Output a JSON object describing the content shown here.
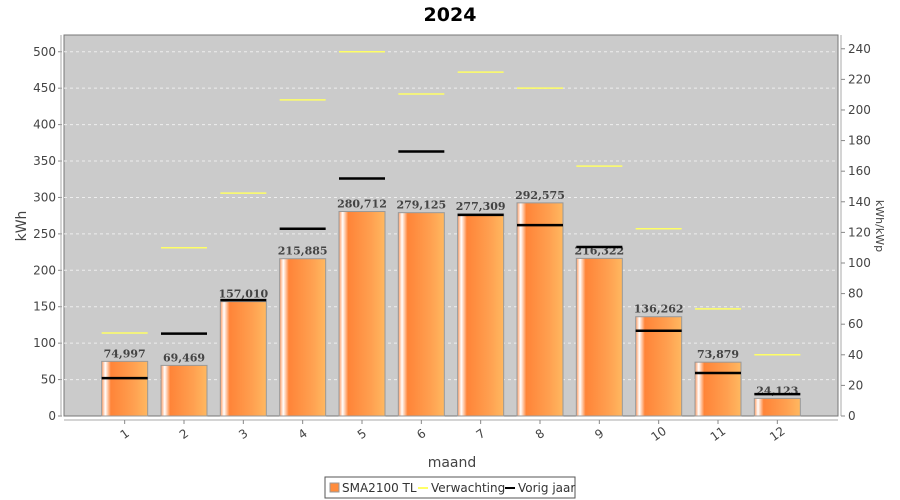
{
  "chart_data": {
    "type": "bar",
    "title": "2024",
    "xlabel": "maand",
    "ylabel": "kWh",
    "y2label": "kWh/kWp",
    "ylim": [
      0,
      523
    ],
    "y2lim": [
      0,
      249
    ],
    "yticks": [
      0,
      50,
      100,
      150,
      200,
      250,
      300,
      350,
      400,
      450,
      500
    ],
    "y2ticks": [
      0,
      20,
      40,
      60,
      80,
      100,
      120,
      140,
      160,
      180,
      200,
      220,
      240
    ],
    "grid": true,
    "categories": [
      "1",
      "2",
      "3",
      "4",
      "5",
      "6",
      "7",
      "8",
      "9",
      "10",
      "11",
      "12"
    ],
    "series": [
      {
        "name": "SMA2100 TL",
        "kind": "bar",
        "color": "#ff8c3c",
        "values": [
          74.997,
          69.469,
          157.01,
          215.885,
          280.712,
          279.125,
          277.309,
          292.575,
          216.322,
          136.262,
          73.879,
          24.123
        ],
        "labels": [
          "74,997",
          "69,469",
          "157,010",
          "215,885",
          "280,712",
          "279,125",
          "277,309",
          "292,575",
          "216,322",
          "136,262",
          "73,879",
          "24,123"
        ]
      },
      {
        "name": "Verwachting",
        "kind": "marker",
        "color": "#ffff66",
        "values": [
          114,
          231,
          306,
          434,
          500,
          442,
          472,
          450,
          343,
          257,
          147,
          84
        ]
      },
      {
        "name": "Vorig jaar",
        "kind": "marker",
        "color": "#000000",
        "values": [
          52,
          113,
          159,
          257,
          326,
          363,
          276,
          262,
          232,
          117,
          59,
          30
        ]
      }
    ],
    "legend_position": "bottom"
  }
}
